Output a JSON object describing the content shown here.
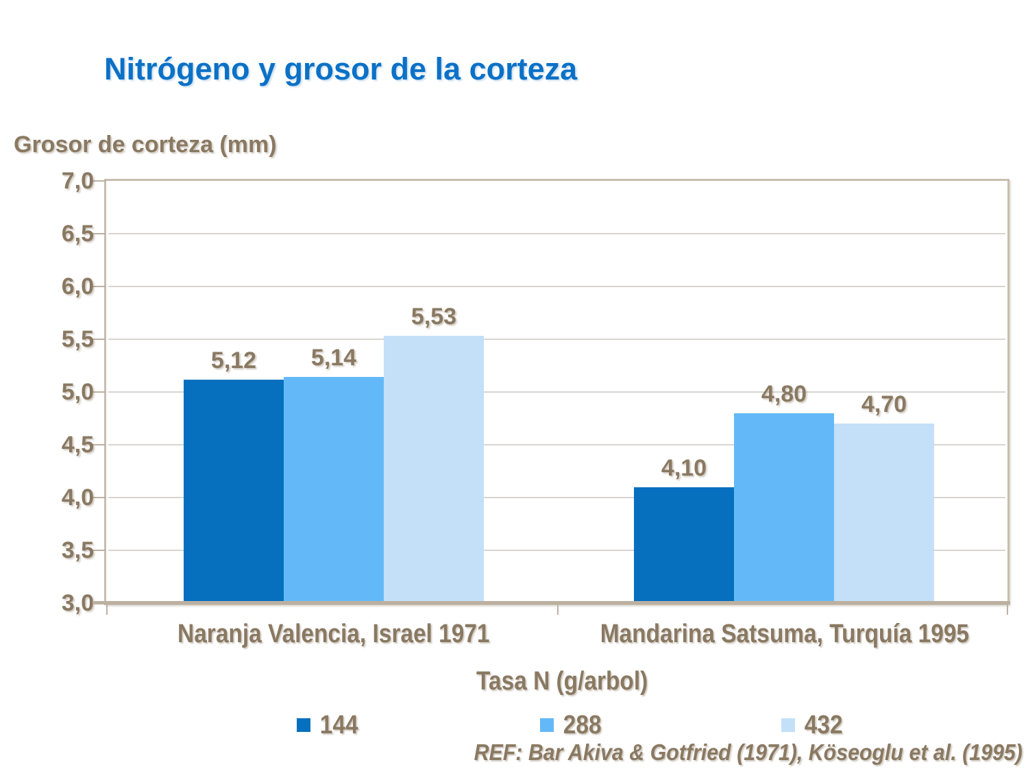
{
  "slide": {
    "title": "Nitrógeno y grosor de la corteza",
    "ref_note": "REF: Bar Akiva & Gotfried (1971), Köseoglu et al. (1995)"
  },
  "colors": {
    "title_blue": "#0B71C7",
    "axis_text_brown": "#8A7962",
    "plot_border_tan": "#C9BDAF",
    "baseline_tan": "#BCB0A1",
    "gridline_gray": "#D8D5D1",
    "series_144": "#0770BE",
    "series_288": "#63B9F7",
    "series_432": "#C3E0F8"
  },
  "chart_data": {
    "type": "bar",
    "title": "Nitrógeno y grosor de la corteza",
    "ylabel": "Grosor de corteza (mm)",
    "xlabel": "Tasa N (g/arbol)",
    "categories": [
      "Naranja Valencia, Israel 1971",
      "Mandarina Satsuma, Turquía 1995"
    ],
    "series": [
      {
        "name": "144",
        "color": "#0770BE",
        "values": [
          5.12,
          4.1
        ]
      },
      {
        "name": "288",
        "color": "#63B9F7",
        "values": [
          5.14,
          4.8
        ]
      },
      {
        "name": "432",
        "color": "#C3E0F8",
        "values": [
          5.53,
          4.7
        ]
      }
    ],
    "value_labels": [
      [
        "5,12",
        "5,14",
        "5,53"
      ],
      [
        "4,10",
        "4,80",
        "4,70"
      ]
    ],
    "ylim": [
      3.0,
      7.0
    ],
    "ytick_step": 0.5,
    "ytick_labels": [
      "7,0",
      "6,5",
      "6,0",
      "5,5",
      "5,0",
      "4,5",
      "4,0",
      "3,5",
      "3,0"
    ],
    "grid": true,
    "legend_position": "bottom"
  }
}
